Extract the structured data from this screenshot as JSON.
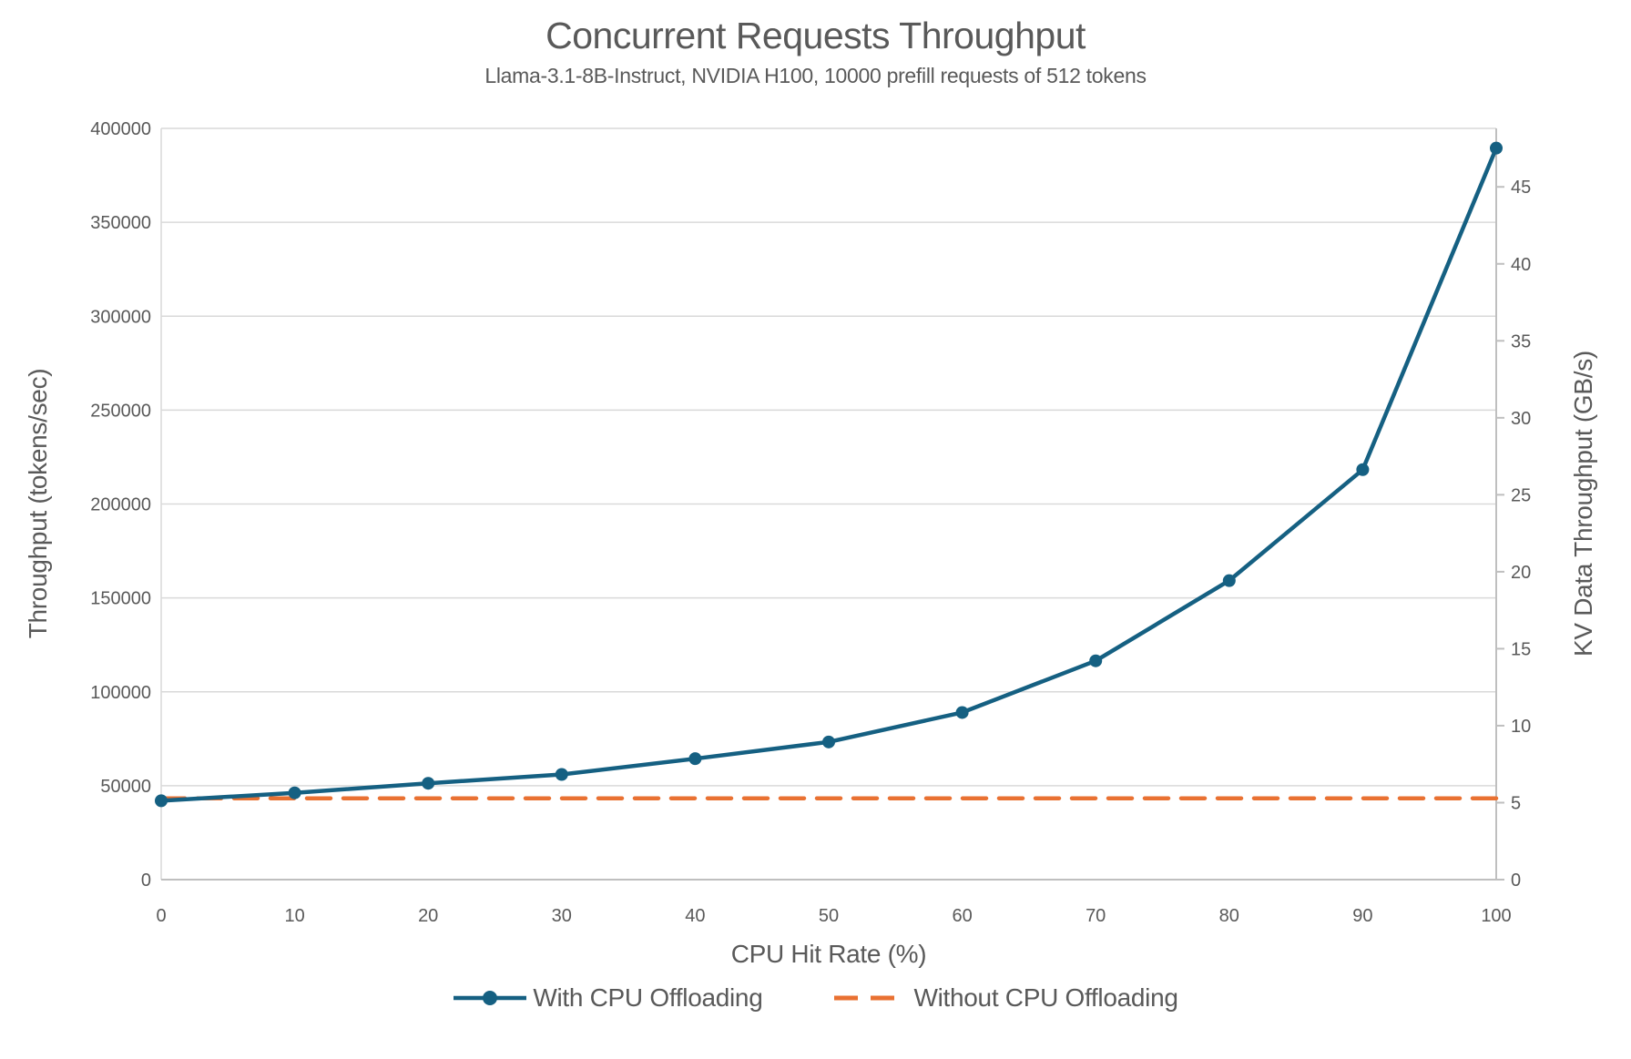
{
  "chart_data": {
    "type": "line",
    "title": "Concurrent Requests Throughput",
    "subtitle": "Llama-3.1-8B-Instruct, NVIDIA H100, 10000 prefill requests of 512 tokens",
    "xlabel": "CPU Hit Rate (%)",
    "ylabel_left": "Throughput (tokens/sec)",
    "ylabel_right": "KV Data Throughput (GB/s)",
    "x": [
      0,
      10,
      20,
      30,
      40,
      50,
      60,
      70,
      80,
      90,
      100
    ],
    "x_range": [
      0,
      100
    ],
    "x_ticks": [
      0,
      10,
      20,
      30,
      40,
      50,
      60,
      70,
      80,
      90,
      100
    ],
    "y_left_range": [
      0,
      400000
    ],
    "y_left_ticks": [
      0,
      50000,
      100000,
      150000,
      200000,
      250000,
      300000,
      350000,
      400000
    ],
    "y_right_range": [
      0,
      48.8
    ],
    "y_right_ticks": [
      0,
      5,
      10,
      15,
      20,
      25,
      30,
      35,
      40,
      45
    ],
    "grid": "horizontal",
    "legend_position": "bottom",
    "series": [
      {
        "name": "With CPU Offloading",
        "color": "#156082",
        "style": "solid",
        "marker": "circle",
        "axis": "left",
        "values": [
          42000,
          46200,
          51300,
          56000,
          64400,
          73300,
          89000,
          116500,
          159200,
          218300,
          389500
        ]
      },
      {
        "name": "Without CPU Offloading",
        "color": "#E97132",
        "style": "dashed",
        "marker": "none",
        "axis": "left",
        "values": [
          43300,
          43300,
          43300,
          43300,
          43300,
          43300,
          43300,
          43300,
          43300,
          43300,
          43300
        ]
      }
    ],
    "style": {
      "grid_color": "#D9D9D9",
      "axis_line_color": "#BFBFBF",
      "minor_axis_line_color": "#D9D9D9",
      "tick_label_color": "#595959",
      "line_width": 4.5,
      "marker_radius": 7,
      "dash_pattern": "26 14"
    }
  }
}
